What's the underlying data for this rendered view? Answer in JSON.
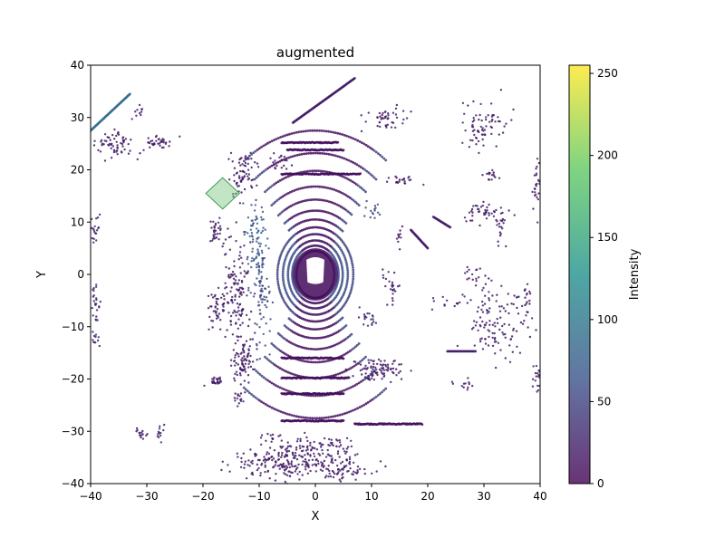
{
  "chart_data": {
    "type": "scatter",
    "title": "augmented",
    "xlabel": "X",
    "ylabel": "Y",
    "xlim": [
      -40,
      40
    ],
    "ylim": [
      -40,
      40
    ],
    "xticks": [
      -40,
      -30,
      -20,
      -10,
      0,
      10,
      20,
      30,
      40
    ],
    "yticks": [
      -40,
      -30,
      -20,
      -10,
      0,
      10,
      20,
      30,
      40
    ],
    "grid": false,
    "colorbar": {
      "label": "Intensity",
      "range": [
        0,
        255
      ],
      "ticks": [
        0,
        50,
        100,
        150,
        200,
        250
      ],
      "colormap": "viridis",
      "colors": [
        "#440154",
        "#3b528b",
        "#21918c",
        "#5ec962",
        "#fde725"
      ]
    },
    "ring_radii": [
      4.5,
      5.5,
      6.5,
      7.7,
      9,
      10.5,
      12.2,
      14.3,
      16.8,
      19.8,
      23.2,
      27.5
    ],
    "arcs": [
      {
        "x1": -5,
        "x2": 5,
        "y": 23.8,
        "intensity": 10
      },
      {
        "x1": -6,
        "x2": 4,
        "y": 25.2,
        "intensity": 10
      },
      {
        "x1": -6,
        "x2": 8,
        "y": 19.2,
        "intensity": 10
      },
      {
        "x1": -6,
        "x2": 5,
        "y": -16.0,
        "intensity": 10
      },
      {
        "x1": -6,
        "x2": 6,
        "y": -19.8,
        "intensity": 10
      },
      {
        "x1": -6,
        "x2": 5,
        "y": -22.8,
        "intensity": 10
      },
      {
        "x1": -6,
        "x2": 5,
        "y": -28.0,
        "intensity": 10
      },
      {
        "x1": 7,
        "x2": 19,
        "y": -28.6,
        "intensity": 10
      }
    ],
    "segments": [
      {
        "x1": -40,
        "y1": 27.5,
        "x2": -33,
        "y2": 34.5,
        "intensity": 90
      },
      {
        "x1": -4,
        "y1": 29,
        "x2": 7,
        "y2": 37.5,
        "intensity": 20
      },
      {
        "x1": 23.5,
        "y1": -14.7,
        "x2": 28.5,
        "y2": -14.7,
        "intensity": 20
      },
      {
        "x1": 17,
        "y1": 8.5,
        "x2": 20,
        "y2": 5,
        "intensity": 20
      },
      {
        "x1": 21,
        "y1": 11,
        "x2": 24,
        "y2": 9,
        "intensity": 20
      }
    ],
    "clusters": [
      {
        "x": -36,
        "y": 25,
        "sx": 1.6,
        "sy": 1.5,
        "n": 60,
        "intensity": 20
      },
      {
        "x": -28,
        "y": 25.5,
        "sx": 1.2,
        "sy": 0.6,
        "n": 35,
        "intensity": 20
      },
      {
        "x": -32,
        "y": 31,
        "sx": 0.8,
        "sy": 0.6,
        "n": 10,
        "intensity": 20
      },
      {
        "x": -39.2,
        "y": 9,
        "sx": 0.4,
        "sy": 1.2,
        "n": 20,
        "intensity": 30
      },
      {
        "x": -39.2,
        "y": -6,
        "sx": 0.4,
        "sy": 1.5,
        "n": 25,
        "intensity": 30
      },
      {
        "x": -39,
        "y": -12.5,
        "sx": 0.4,
        "sy": 0.6,
        "n": 10,
        "intensity": 30
      },
      {
        "x": -31,
        "y": -30.5,
        "sx": 0.6,
        "sy": 0.6,
        "n": 15,
        "intensity": 20
      },
      {
        "x": -27.5,
        "y": -30,
        "sx": 0.4,
        "sy": 1.0,
        "n": 12,
        "intensity": 20
      },
      {
        "x": -18,
        "y": -20.5,
        "sx": 0.8,
        "sy": 0.5,
        "n": 25,
        "intensity": 20
      },
      {
        "x": -17.5,
        "y": -6.5,
        "sx": 0.8,
        "sy": 1.6,
        "n": 45,
        "intensity": 20
      },
      {
        "x": -17.5,
        "y": 8.5,
        "sx": 0.8,
        "sy": 1.2,
        "n": 30,
        "intensity": 20
      },
      {
        "x": -14,
        "y": -4,
        "sx": 1.2,
        "sy": 5.0,
        "n": 130,
        "intensity": 20
      },
      {
        "x": -13,
        "y": -16.5,
        "sx": 1.1,
        "sy": 2.0,
        "n": 80,
        "intensity": 20
      },
      {
        "x": -13.5,
        "y": -24,
        "sx": 0.6,
        "sy": 0.8,
        "n": 15,
        "intensity": 20
      },
      {
        "x": -13,
        "y": 19,
        "sx": 1.2,
        "sy": 2.2,
        "n": 70,
        "intensity": 20
      },
      {
        "x": -10.5,
        "y": 6,
        "sx": 0.9,
        "sy": 4.5,
        "n": 80,
        "intensity": 70
      },
      {
        "x": -9.5,
        "y": -5,
        "sx": 0.8,
        "sy": 5.0,
        "n": 70,
        "intensity": 55
      },
      {
        "x": -6,
        "y": 21.5,
        "sx": 1.0,
        "sy": 0.8,
        "n": 20,
        "intensity": 20
      },
      {
        "x": -7.5,
        "y": -31.5,
        "sx": 1.0,
        "sy": 0.6,
        "n": 15,
        "intensity": 20
      },
      {
        "x": -6,
        "y": -36,
        "sx": 4.5,
        "sy": 1.5,
        "n": 200,
        "intensity": 20
      },
      {
        "x": 5,
        "y": -37,
        "sx": 3.0,
        "sy": 1.5,
        "n": 80,
        "intensity": 20
      },
      {
        "x": -2,
        "y": -33,
        "sx": 3.0,
        "sy": 1.0,
        "n": 40,
        "intensity": 20
      },
      {
        "x": 3,
        "y": -33,
        "sx": 2.0,
        "sy": 0.8,
        "n": 25,
        "intensity": 20
      },
      {
        "x": 11,
        "y": -18,
        "sx": 2.3,
        "sy": 1.0,
        "n": 90,
        "intensity": 20
      },
      {
        "x": 12.5,
        "y": 29.5,
        "sx": 1.8,
        "sy": 1.2,
        "n": 45,
        "intensity": 20
      },
      {
        "x": 9.5,
        "y": -8.5,
        "sx": 1.0,
        "sy": 0.8,
        "n": 20,
        "intensity": 30
      },
      {
        "x": 10.5,
        "y": 12,
        "sx": 0.9,
        "sy": 0.8,
        "n": 15,
        "intensity": 50
      },
      {
        "x": 13.5,
        "y": -2,
        "sx": 0.8,
        "sy": 1.5,
        "n": 25,
        "intensity": 20
      },
      {
        "x": 15,
        "y": 18,
        "sx": 1.5,
        "sy": 0.4,
        "n": 20,
        "intensity": 20
      },
      {
        "x": 15,
        "y": 7.5,
        "sx": 0.3,
        "sy": 0.8,
        "n": 10,
        "intensity": 20
      },
      {
        "x": 30,
        "y": 29,
        "sx": 2.2,
        "sy": 2.5,
        "n": 70,
        "intensity": 20
      },
      {
        "x": 31,
        "y": 19,
        "sx": 0.8,
        "sy": 0.6,
        "n": 15,
        "intensity": 20
      },
      {
        "x": 29.5,
        "y": 12,
        "sx": 2.0,
        "sy": 1.0,
        "n": 40,
        "intensity": 20
      },
      {
        "x": 33,
        "y": 9,
        "sx": 0.5,
        "sy": 1.5,
        "n": 20,
        "intensity": 20
      },
      {
        "x": 32,
        "y": -10,
        "sx": 2.5,
        "sy": 3.2,
        "n": 110,
        "intensity": 20
      },
      {
        "x": 29,
        "y": -0.5,
        "sx": 1.2,
        "sy": 1.0,
        "n": 20,
        "intensity": 20
      },
      {
        "x": 26.5,
        "y": -21,
        "sx": 1.0,
        "sy": 0.7,
        "n": 12,
        "intensity": 20
      },
      {
        "x": 39.5,
        "y": 17,
        "sx": 0.4,
        "sy": 2.5,
        "n": 25,
        "intensity": 20
      },
      {
        "x": 39.5,
        "y": -20,
        "sx": 0.4,
        "sy": 1.6,
        "n": 18,
        "intensity": 20
      },
      {
        "x": 37,
        "y": -5,
        "sx": 1.0,
        "sy": 2.0,
        "n": 20,
        "intensity": 20
      },
      {
        "x": 24,
        "y": -5,
        "sx": 1.5,
        "sy": 1.0,
        "n": 15,
        "intensity": 20
      }
    ],
    "vehicle_region": {
      "x": 0,
      "y": 0,
      "rx": 4,
      "ry": 5
    },
    "polygon": {
      "points": [
        [
          -16.5,
          18.5
        ],
        [
          -13.5,
          15.5
        ],
        [
          -16.5,
          12.5
        ],
        [
          -19.5,
          15.5
        ]
      ],
      "fill": "#77c77f",
      "stroke": "#4a9a55"
    }
  }
}
